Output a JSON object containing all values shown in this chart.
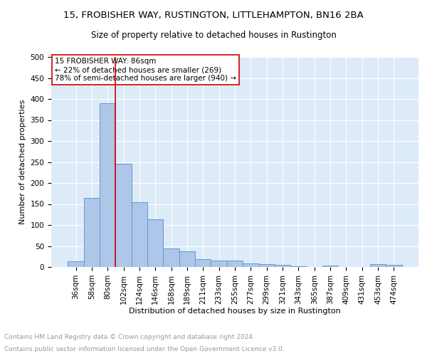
{
  "title1": "15, FROBISHER WAY, RUSTINGTON, LITTLEHAMPTON, BN16 2BA",
  "title2": "Size of property relative to detached houses in Rustington",
  "xlabel": "Distribution of detached houses by size in Rustington",
  "ylabel": "Number of detached properties",
  "footer1": "Contains HM Land Registry data © Crown copyright and database right 2024.",
  "footer2": "Contains public sector information licensed under the Open Government Licence v3.0.",
  "bar_labels": [
    "36sqm",
    "58sqm",
    "80sqm",
    "102sqm",
    "124sqm",
    "146sqm",
    "168sqm",
    "189sqm",
    "211sqm",
    "233sqm",
    "255sqm",
    "277sqm",
    "299sqm",
    "321sqm",
    "343sqm",
    "365sqm",
    "387sqm",
    "409sqm",
    "431sqm",
    "453sqm",
    "474sqm"
  ],
  "bar_values": [
    13,
    165,
    390,
    245,
    155,
    113,
    44,
    38,
    18,
    16,
    15,
    9,
    6,
    5,
    2,
    0,
    4,
    0,
    0,
    7,
    5
  ],
  "bar_color": "#aec6e8",
  "bar_edge_color": "#5b9bd5",
  "vline_x_idx": 2,
  "vline_color": "#cc0000",
  "annotation_text": "15 FROBISHER WAY: 86sqm\n← 22% of detached houses are smaller (269)\n78% of semi-detached houses are larger (940) →",
  "annotation_box_color": "#ffffff",
  "annotation_box_edge": "#cc0000",
  "ylim": [
    0,
    500
  ],
  "yticks": [
    0,
    50,
    100,
    150,
    200,
    250,
    300,
    350,
    400,
    450,
    500
  ],
  "plot_bg": "#ddeaf7",
  "title1_fontsize": 9.5,
  "title2_fontsize": 8.5,
  "footer_fontsize": 6.5,
  "xlabel_fontsize": 8,
  "ylabel_fontsize": 8,
  "tick_fontsize": 7.5,
  "annot_fontsize": 7.5
}
